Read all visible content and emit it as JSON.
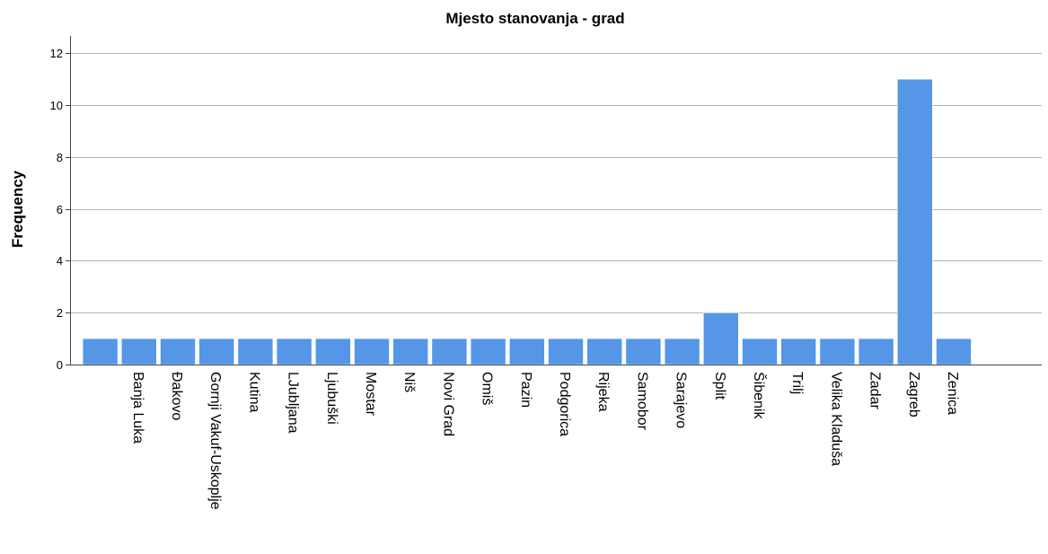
{
  "chart_data": {
    "type": "bar",
    "title": "Mjesto stanovanja - grad",
    "xlabel": "",
    "ylabel": "Frequency",
    "ylim": [
      0,
      12.6
    ],
    "yticks": [
      0,
      2,
      4,
      6,
      8,
      10,
      12
    ],
    "grid": true,
    "categories": [
      "",
      "Banja Luka",
      "Đakovo",
      "Gornji Vakuf-Uskoplje",
      "Kutina",
      "LJubljana",
      "Ljubuški",
      "Mostar",
      "Niš",
      "Novi Grad",
      "Omiš",
      "Pazin",
      "Podgorica",
      "Rijeka",
      "Samobor",
      "Sarajevo",
      "Split",
      "Šibenik",
      "Trilj",
      "Velika Kladuša",
      "Zadar",
      "Zagreb",
      "Zenica"
    ],
    "values": [
      1,
      1,
      1,
      1,
      1,
      1,
      1,
      1,
      1,
      1,
      1,
      1,
      1,
      1,
      1,
      1,
      2,
      1,
      1,
      1,
      1,
      11,
      1
    ],
    "colors": {
      "bar": "#5596e6",
      "grid": "#b4b4b4",
      "axis": "#444444"
    }
  }
}
